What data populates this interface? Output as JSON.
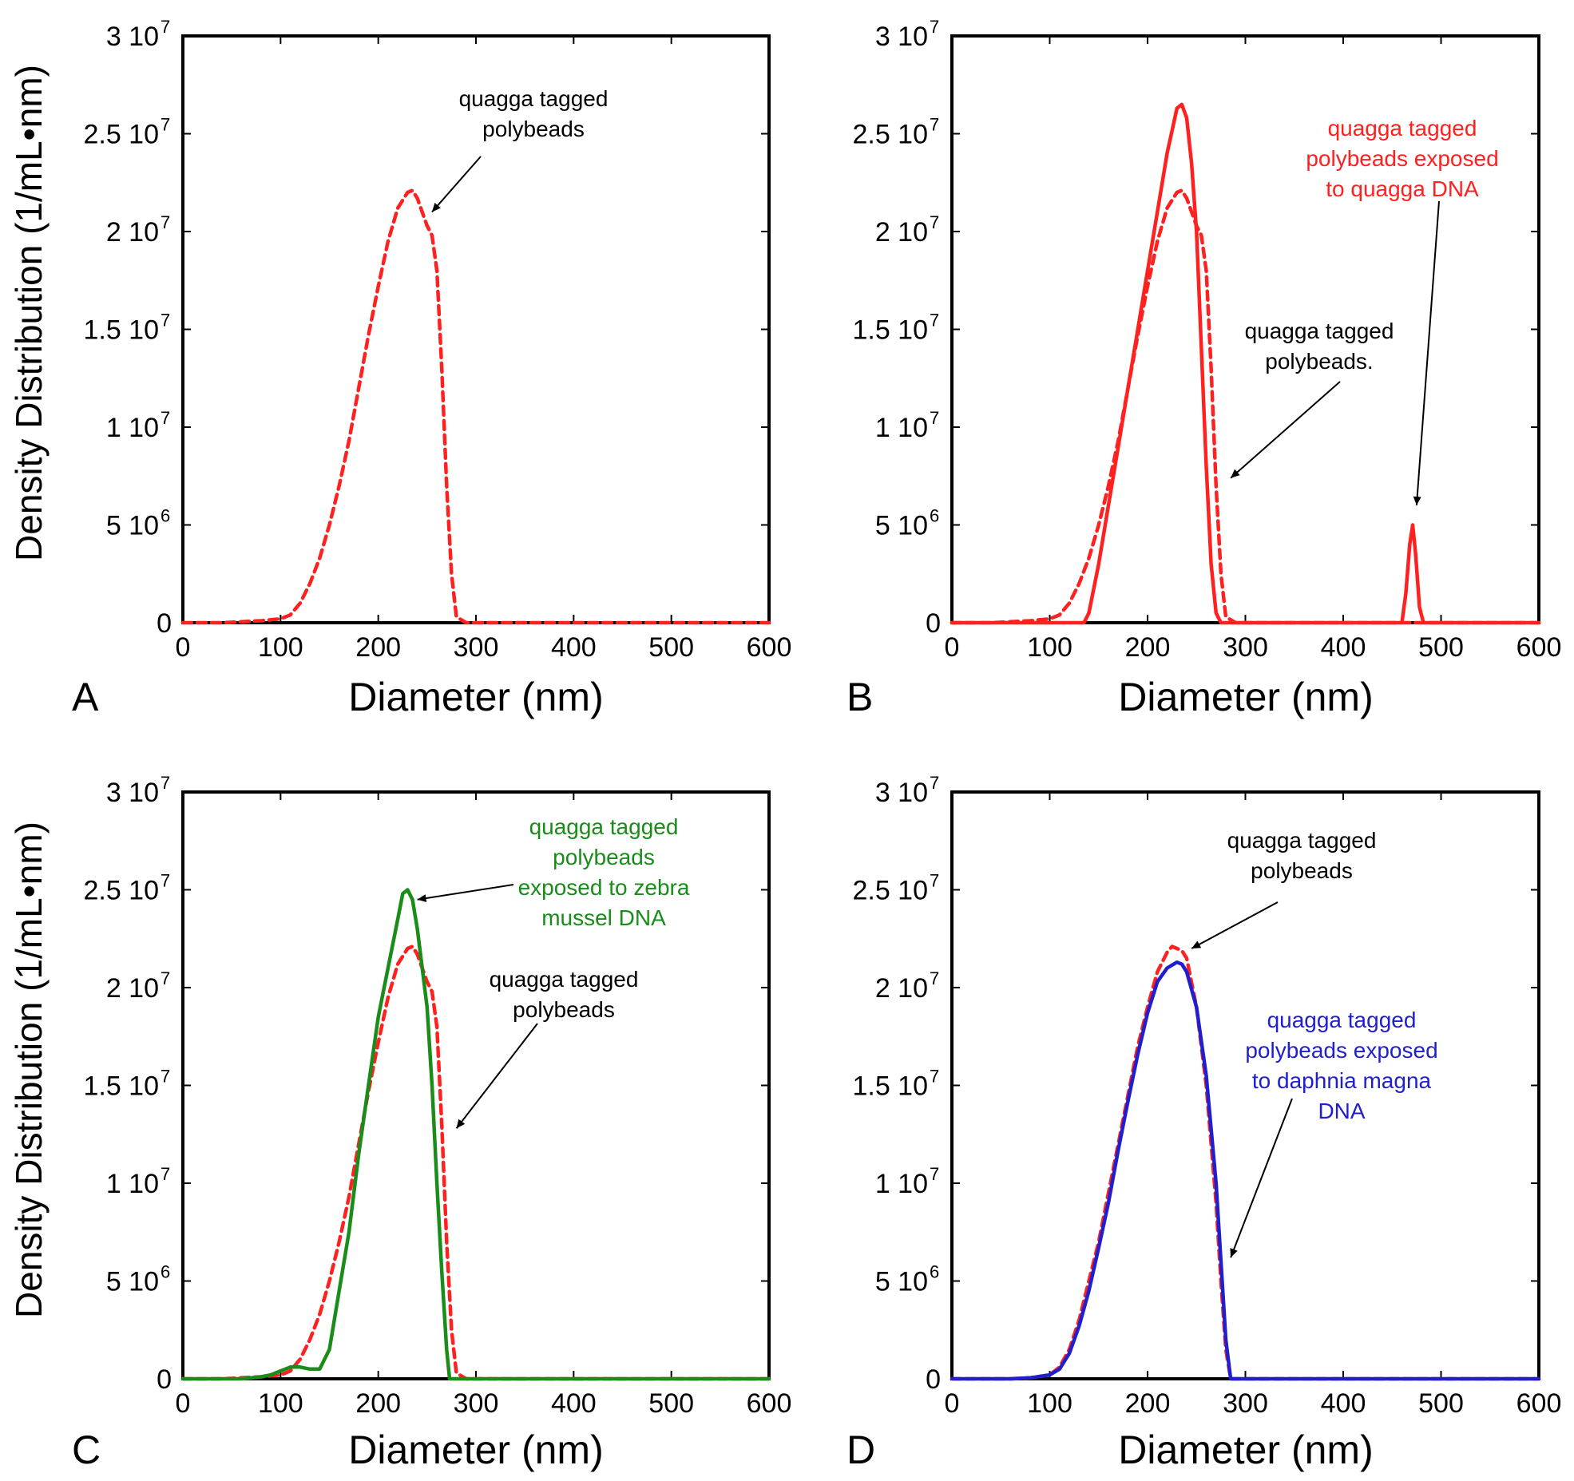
{
  "figure": {
    "ylabel": "Density Distribution (1/mL•nm)",
    "xlabel": "Diameter (nm)"
  },
  "colors": {
    "red": "#ff2020",
    "green": "#1a8c1a",
    "blue": "#1f1fd0",
    "black": "#000000"
  },
  "chart_data": [
    {
      "type": "line",
      "panel": "A",
      "xlabel": "Diameter (nm)",
      "ylabel": "Density Distribution (1/mL•nm)",
      "xlim": [
        0,
        600
      ],
      "ylim": [
        0,
        30000000
      ],
      "xticks": [
        0,
        100,
        200,
        300,
        400,
        500,
        600
      ],
      "yticks": [
        {
          "value": 0,
          "label": "0",
          "base": "0",
          "exp": ""
        },
        {
          "value": 5000000,
          "label": "5 10^6",
          "base": "5 10",
          "exp": "6"
        },
        {
          "value": 10000000,
          "label": "1 10^7",
          "base": "1 10",
          "exp": "7"
        },
        {
          "value": 15000000,
          "label": "1.5 10^7",
          "base": "1.5 10",
          "exp": "7"
        },
        {
          "value": 20000000,
          "label": "2 10^7",
          "base": "2 10",
          "exp": "7"
        },
        {
          "value": 25000000,
          "label": "2.5 10^7",
          "base": "2.5 10",
          "exp": "7"
        },
        {
          "value": 30000000,
          "label": "3 10^7",
          "base": "3 10",
          "exp": "7"
        }
      ],
      "grid": false,
      "series": [
        {
          "color": "#ff2020",
          "style": "dashed",
          "x": [
            0,
            20,
            40,
            60,
            80,
            100,
            110,
            120,
            130,
            140,
            150,
            160,
            170,
            180,
            190,
            200,
            210,
            220,
            230,
            235,
            240,
            250,
            255,
            260,
            265,
            270,
            275,
            280,
            290,
            300,
            400,
            500,
            600
          ],
          "y": [
            0,
            0,
            0,
            50000,
            100000,
            200000,
            400000,
            1000000,
            2000000,
            3300000,
            5000000,
            7000000,
            9300000,
            12000000,
            14700000,
            17200000,
            19500000,
            21200000,
            22000000,
            22100000,
            21700000,
            20300000,
            19800000,
            18000000,
            13000000,
            7000000,
            2500000,
            300000,
            0,
            0,
            0,
            0,
            0
          ]
        }
      ],
      "annotations": [
        {
          "lines": [
            "quagga tagged",
            "polybeads"
          ],
          "color": "#000000",
          "target": [
            255,
            21000000
          ]
        }
      ]
    },
    {
      "type": "line",
      "panel": "B",
      "xlabel": "Diameter (nm)",
      "ylabel": "",
      "xlim": [
        0,
        600
      ],
      "ylim": [
        0,
        30000000
      ],
      "xticks": [
        0,
        100,
        200,
        300,
        400,
        500,
        600
      ],
      "yticks": [
        {
          "value": 0,
          "label": "0",
          "base": "0",
          "exp": ""
        },
        {
          "value": 5000000,
          "label": "5 10^6",
          "base": "5 10",
          "exp": "6"
        },
        {
          "value": 10000000,
          "label": "1 10^7",
          "base": "1 10",
          "exp": "7"
        },
        {
          "value": 15000000,
          "label": "1.5 10^7",
          "base": "1.5 10",
          "exp": "7"
        },
        {
          "value": 20000000,
          "label": "2 10^7",
          "base": "2 10",
          "exp": "7"
        },
        {
          "value": 25000000,
          "label": "2.5 10^7",
          "base": "2.5 10",
          "exp": "7"
        },
        {
          "value": 30000000,
          "label": "3 10^7",
          "base": "3 10",
          "exp": "7"
        }
      ],
      "grid": false,
      "series": [
        {
          "color": "#ff2020",
          "style": "dashed",
          "x": [
            0,
            20,
            40,
            60,
            80,
            100,
            110,
            120,
            130,
            140,
            150,
            160,
            170,
            180,
            190,
            200,
            210,
            220,
            230,
            235,
            240,
            250,
            255,
            260,
            265,
            270,
            275,
            280,
            290,
            300,
            400,
            500,
            600
          ],
          "y": [
            0,
            0,
            0,
            50000,
            100000,
            200000,
            400000,
            1000000,
            2000000,
            3300000,
            5000000,
            7000000,
            9300000,
            12000000,
            14700000,
            17200000,
            19500000,
            21200000,
            22000000,
            22100000,
            21700000,
            20300000,
            19800000,
            18000000,
            13000000,
            7000000,
            2500000,
            300000,
            0,
            0,
            0,
            0,
            0
          ]
        },
        {
          "color": "#ff2020",
          "style": "solid",
          "x": [
            0,
            100,
            135,
            140,
            150,
            160,
            170,
            180,
            190,
            200,
            210,
            220,
            230,
            235,
            240,
            245,
            250,
            255,
            260,
            265,
            270,
            275,
            460,
            464,
            468,
            471,
            474,
            478,
            482,
            600
          ],
          "y": [
            0,
            0,
            0,
            500000,
            3000000,
            6000000,
            9000000,
            12000000,
            15000000,
            18000000,
            21000000,
            24000000,
            26300000,
            26500000,
            25800000,
            23500000,
            20000000,
            14000000,
            8000000,
            3000000,
            500000,
            0,
            0,
            1500000,
            4000000,
            5000000,
            3500000,
            800000,
            0,
            0
          ]
        }
      ],
      "annotations": [
        {
          "lines": [
            "quagga tagged",
            "polybeads exposed",
            "to quagga DNA"
          ],
          "color": "#ff2020",
          "target": [
            475,
            6000000
          ]
        },
        {
          "lines": [
            "quagga tagged",
            "polybeads."
          ],
          "color": "#000000",
          "target": [
            285,
            7400000
          ]
        }
      ]
    },
    {
      "type": "line",
      "panel": "C",
      "xlabel": "Diameter (nm)",
      "ylabel": "Density Distribution (1/mL•nm)",
      "xlim": [
        0,
        600
      ],
      "ylim": [
        0,
        30000000
      ],
      "xticks": [
        0,
        100,
        200,
        300,
        400,
        500,
        600
      ],
      "yticks": [
        {
          "value": 0,
          "label": "0",
          "base": "0",
          "exp": ""
        },
        {
          "value": 5000000,
          "label": "5 10^6",
          "base": "5 10",
          "exp": "6"
        },
        {
          "value": 10000000,
          "label": "1 10^7",
          "base": "1 10",
          "exp": "7"
        },
        {
          "value": 15000000,
          "label": "1.5 10^7",
          "base": "1.5 10",
          "exp": "7"
        },
        {
          "value": 20000000,
          "label": "2 10^7",
          "base": "2 10",
          "exp": "7"
        },
        {
          "value": 25000000,
          "label": "2.5 10^7",
          "base": "2.5 10",
          "exp": "7"
        },
        {
          "value": 30000000,
          "label": "3 10^7",
          "base": "3 10",
          "exp": "7"
        }
      ],
      "grid": false,
      "series": [
        {
          "color": "#ff2020",
          "style": "dashed",
          "x": [
            0,
            20,
            40,
            60,
            80,
            100,
            110,
            120,
            130,
            140,
            150,
            160,
            170,
            180,
            190,
            200,
            210,
            220,
            230,
            235,
            240,
            250,
            255,
            260,
            265,
            270,
            275,
            280,
            290,
            300,
            400,
            500,
            600
          ],
          "y": [
            0,
            0,
            0,
            50000,
            100000,
            200000,
            400000,
            1000000,
            2000000,
            3300000,
            5000000,
            7000000,
            9300000,
            12000000,
            14700000,
            17200000,
            19500000,
            21200000,
            22000000,
            22100000,
            21700000,
            20300000,
            19800000,
            18000000,
            13000000,
            7000000,
            2500000,
            300000,
            0,
            0,
            0,
            0,
            0
          ]
        },
        {
          "color": "#1a8c1a",
          "style": "solid",
          "x": [
            0,
            60,
            80,
            90,
            100,
            110,
            120,
            130,
            140,
            150,
            160,
            170,
            180,
            190,
            200,
            210,
            220,
            225,
            230,
            235,
            240,
            250,
            255,
            260,
            265,
            270,
            273,
            280,
            600
          ],
          "y": [
            0,
            0,
            100000,
            200000,
            400000,
            600000,
            600000,
            500000,
            500000,
            1500000,
            4500000,
            7500000,
            11500000,
            15000000,
            18500000,
            21000000,
            23500000,
            24800000,
            25000000,
            24500000,
            23000000,
            19000000,
            15000000,
            10000000,
            5500000,
            1500000,
            0,
            0,
            0
          ]
        }
      ],
      "annotations": [
        {
          "lines": [
            "quagga tagged",
            "polybeads",
            "exposed to zebra",
            "mussel DNA"
          ],
          "color": "#1a8c1a",
          "target": [
            240,
            24500000
          ]
        },
        {
          "lines": [
            "quagga tagged",
            "polybeads"
          ],
          "color": "#000000",
          "target": [
            280,
            12800000
          ]
        }
      ]
    },
    {
      "type": "line",
      "panel": "D",
      "xlabel": "Diameter (nm)",
      "ylabel": "",
      "xlim": [
        0,
        600
      ],
      "ylim": [
        0,
        30000000
      ],
      "xticks": [
        0,
        100,
        200,
        300,
        400,
        500,
        600
      ],
      "yticks": [
        {
          "value": 0,
          "label": "0",
          "base": "0",
          "exp": ""
        },
        {
          "value": 5000000,
          "label": "5 10^6",
          "base": "5 10",
          "exp": "6"
        },
        {
          "value": 10000000,
          "label": "1 10^7",
          "base": "1 10",
          "exp": "7"
        },
        {
          "value": 15000000,
          "label": "1.5 10^7",
          "base": "1.5 10",
          "exp": "7"
        },
        {
          "value": 20000000,
          "label": "2 10^7",
          "base": "2 10",
          "exp": "7"
        },
        {
          "value": 25000000,
          "label": "2.5 10^7",
          "base": "2.5 10",
          "exp": "7"
        },
        {
          "value": 30000000,
          "label": "3 10^7",
          "base": "3 10",
          "exp": "7"
        }
      ],
      "grid": false,
      "series": [
        {
          "color": "#ff2020",
          "style": "dashed",
          "x": [
            0,
            60,
            80,
            100,
            110,
            120,
            130,
            140,
            150,
            160,
            170,
            180,
            190,
            200,
            210,
            220,
            225,
            230,
            235,
            240,
            250,
            260,
            270,
            275,
            280,
            285,
            600
          ],
          "y": [
            0,
            0,
            50000,
            200000,
            600000,
            1500000,
            3000000,
            5000000,
            7000000,
            9500000,
            12000000,
            14500000,
            17000000,
            19000000,
            20800000,
            21800000,
            22100000,
            22000000,
            21900000,
            21500000,
            19000000,
            15000000,
            9000000,
            5000000,
            1500000,
            0,
            0
          ]
        },
        {
          "color": "#1f1fd0",
          "style": "solid",
          "x": [
            0,
            60,
            80,
            100,
            110,
            120,
            130,
            140,
            150,
            160,
            170,
            180,
            190,
            200,
            210,
            220,
            230,
            235,
            240,
            250,
            260,
            270,
            275,
            280,
            285,
            600
          ],
          "y": [
            0,
            0,
            50000,
            200000,
            500000,
            1300000,
            2700000,
            4500000,
            6700000,
            9000000,
            11700000,
            14200000,
            16600000,
            18700000,
            20300000,
            21000000,
            21300000,
            21200000,
            20800000,
            19000000,
            15500000,
            10000000,
            6000000,
            2000000,
            0,
            0
          ]
        }
      ],
      "annotations": [
        {
          "lines": [
            "quagga tagged",
            "polybeads"
          ],
          "color": "#000000",
          "target": [
            245,
            22000000
          ]
        },
        {
          "lines": [
            "quagga tagged",
            "polybeads exposed",
            "to daphnia magna",
            "DNA"
          ],
          "color": "#1f1fd0",
          "target": [
            285,
            6200000
          ]
        }
      ]
    }
  ]
}
